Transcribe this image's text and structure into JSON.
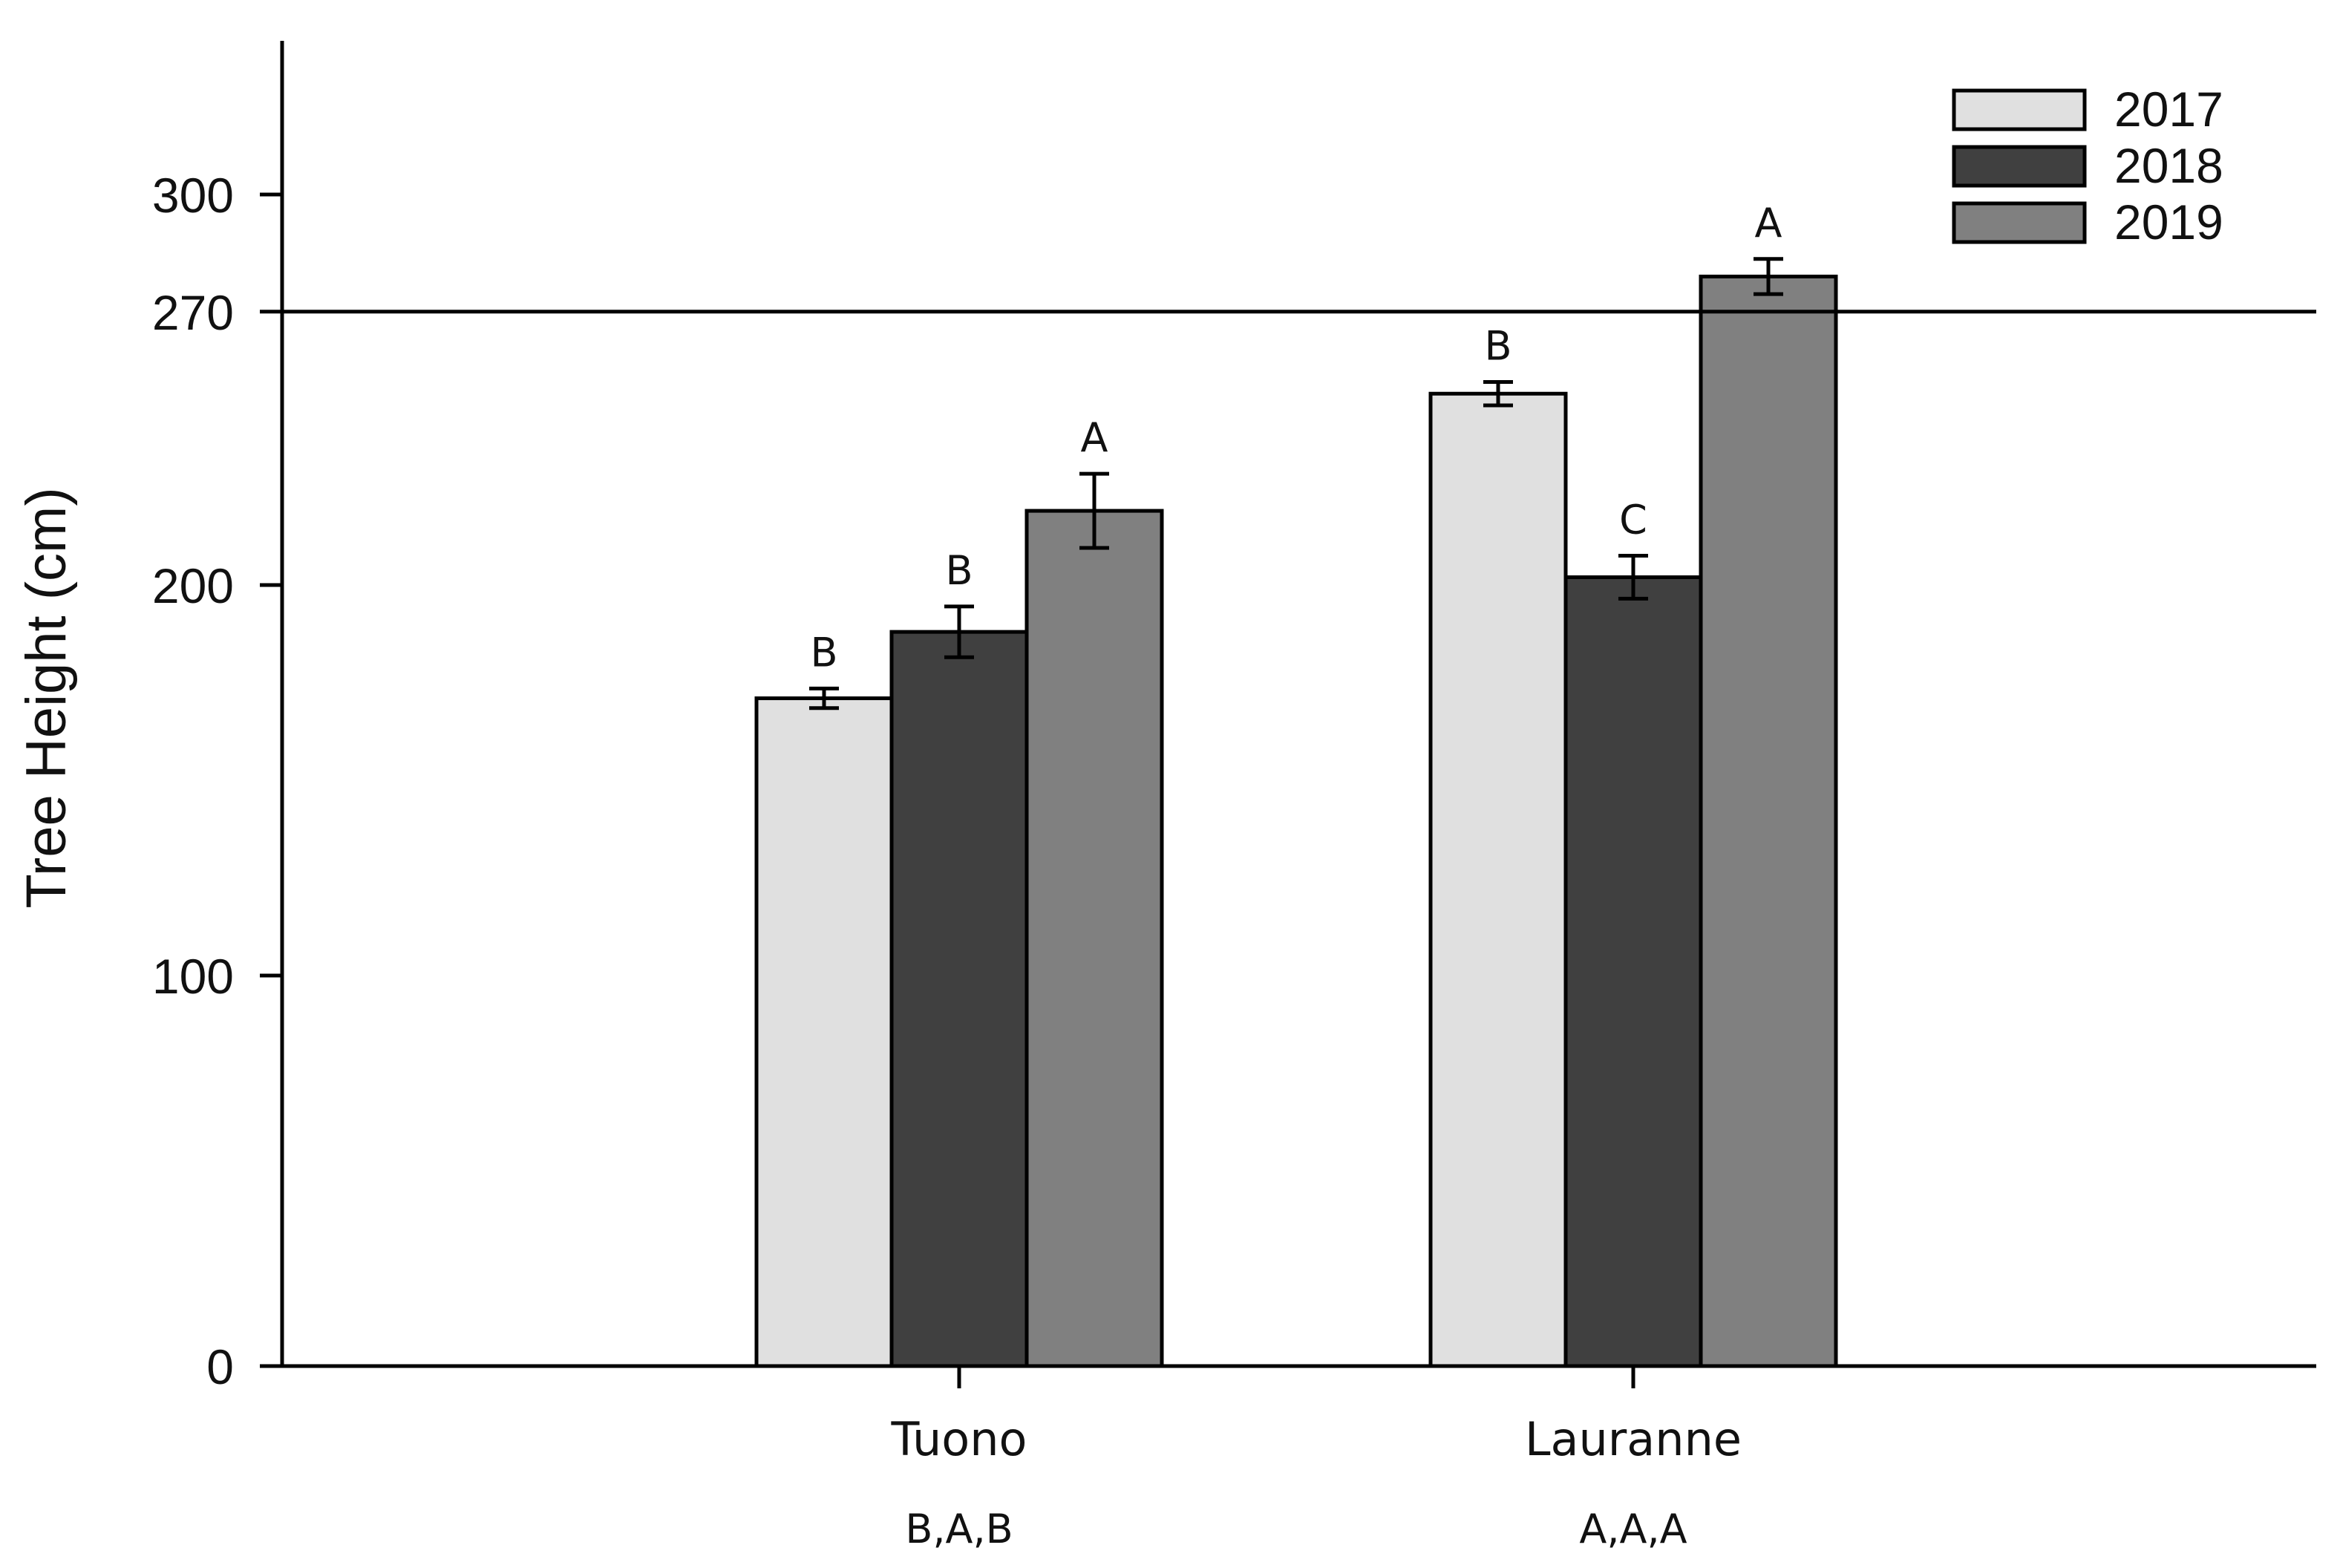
{
  "chart_data": {
    "type": "bar",
    "title": "",
    "xlabel": "",
    "ylabel": "Tree Height (cm)",
    "ylim": [
      0,
      340
    ],
    "yticks": [
      0,
      100,
      200,
      270,
      300
    ],
    "reference_line": 270,
    "grid": false,
    "legend_position": "top-right",
    "categories": [
      "Tuono",
      "Lauranne"
    ],
    "category_letters": [
      "B,A,B",
      "A,A,A"
    ],
    "series": [
      {
        "name": "2017",
        "color": "#e0e0e0",
        "values": [
          171,
          249
        ],
        "errors": [
          2.5,
          3
        ],
        "letters": [
          "B",
          "B"
        ]
      },
      {
        "name": "2018",
        "color": "#404040",
        "values": [
          188,
          202
        ],
        "errors": [
          6.5,
          5.5
        ],
        "letters": [
          "B",
          "C"
        ]
      },
      {
        "name": "2019",
        "color": "#808080",
        "values": [
          219,
          279
        ],
        "errors": [
          9.5,
          4.5
        ],
        "letters": [
          "A",
          "A"
        ]
      }
    ]
  }
}
